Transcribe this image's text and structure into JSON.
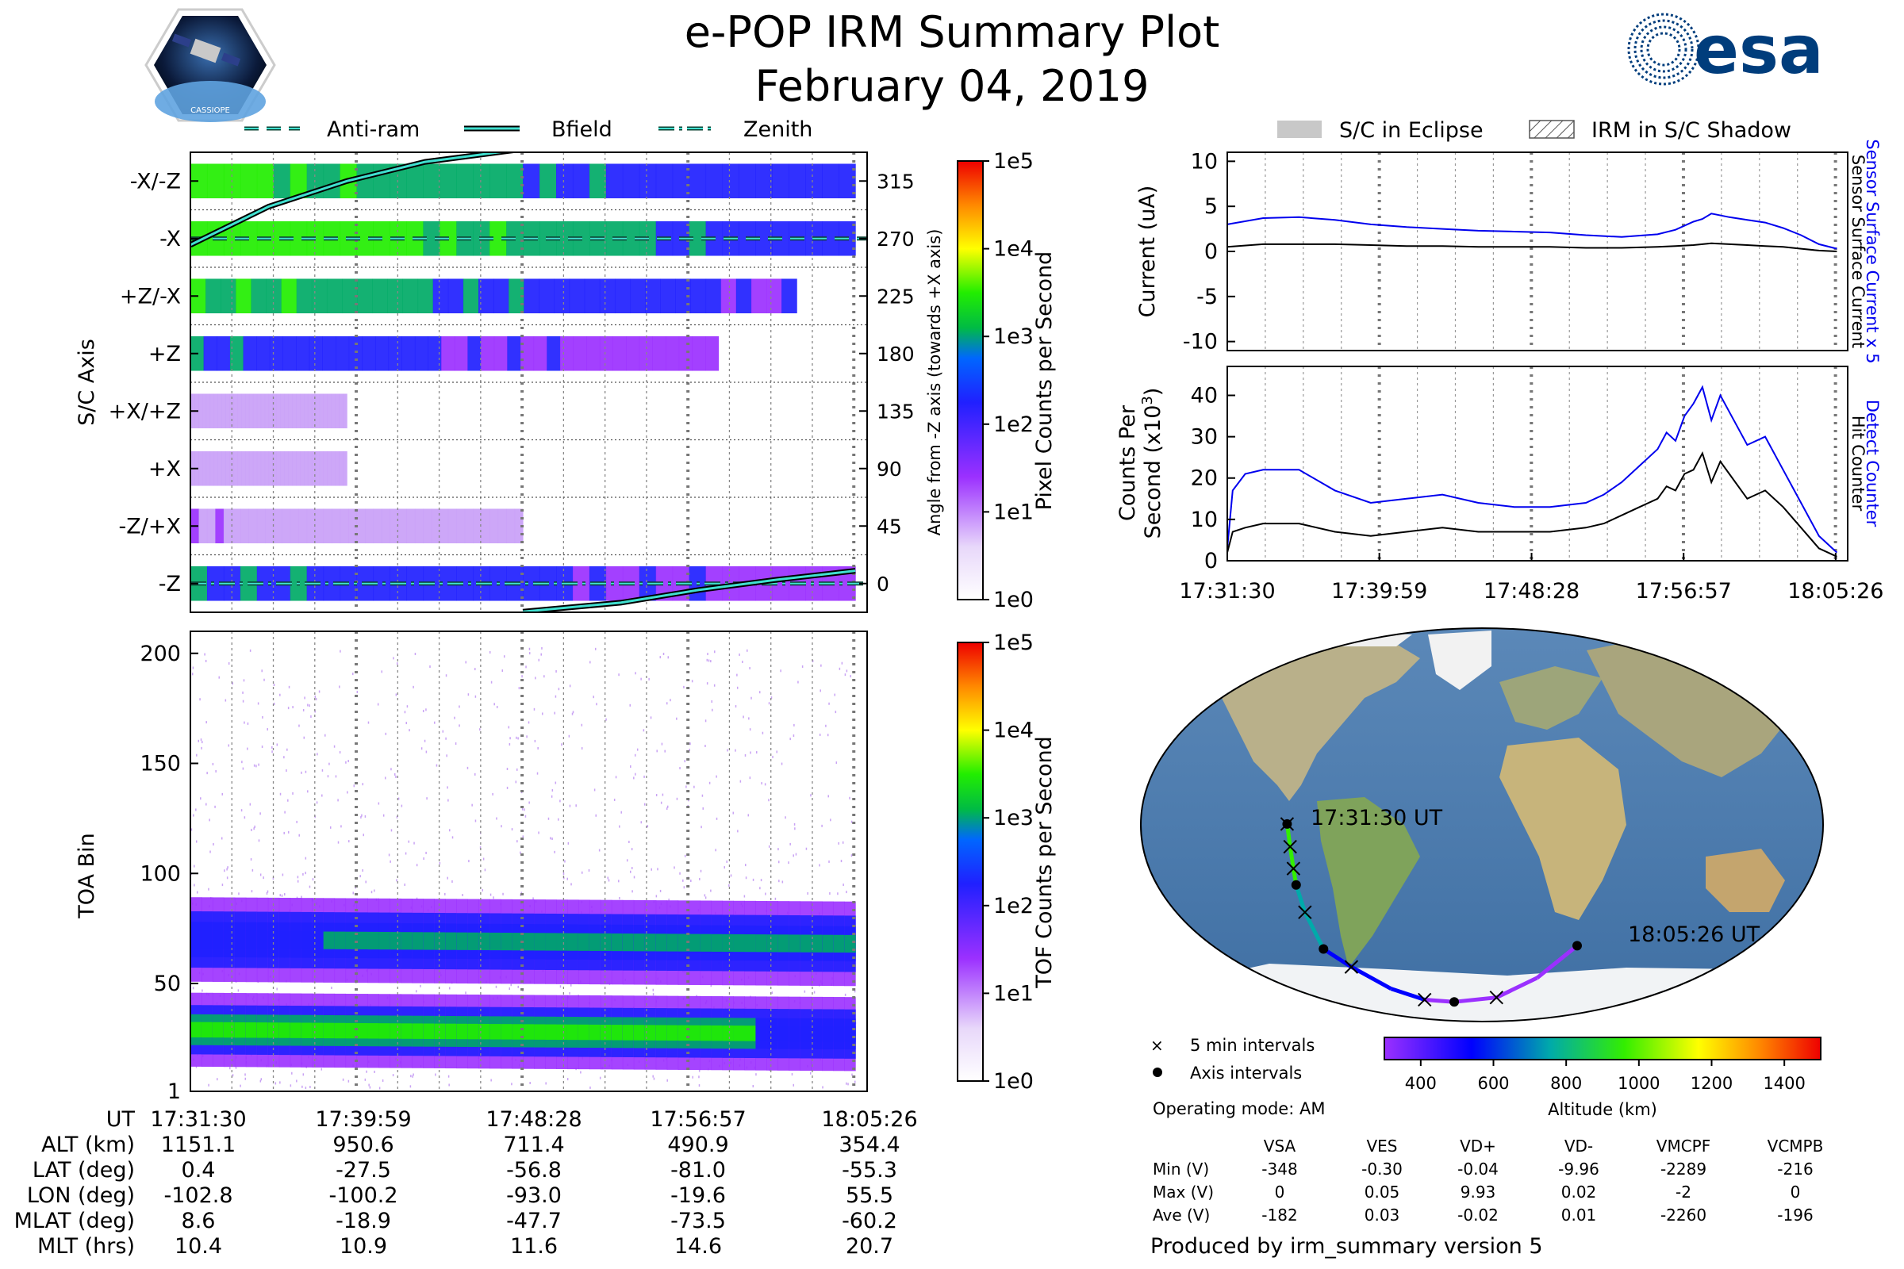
{
  "title": "e-POP IRM Summary Plot",
  "subtitle": "February 04, 2019",
  "logo_left_text": "CASSIOPE",
  "logo_right_text": "esa",
  "legend_top_left": [
    {
      "label": "Anti-ram",
      "style": "dashed"
    },
    {
      "label": "Bfield",
      "style": "solid"
    },
    {
      "label": "Zenith",
      "style": "dashdot"
    }
  ],
  "legend_top_right": [
    {
      "label": "S/C in Eclipse",
      "style": "gray-box"
    },
    {
      "label": "IRM in S/C Shadow",
      "style": "hatched-box"
    }
  ],
  "colors": {
    "anti_ram_line": "#0a3d2e",
    "bfield_outline": "#40e0d0",
    "blue_series": "#0000ee",
    "black_series": "#000000",
    "eclipse_gray": "#c8c8c8"
  },
  "chart_data": [
    {
      "id": "sc_axis",
      "type": "heatmap",
      "ylabel": "S/C Axis",
      "y_tick_labels": [
        "-X/-Z",
        "-X",
        "+Z/-X",
        "+Z",
        "+X/+Z",
        "+X",
        "-Z/+X",
        "-Z"
      ],
      "right_ylabel": "Angle from -Z axis (towards +X axis)",
      "right_ticks": [
        315,
        270,
        225,
        180,
        135,
        90,
        45,
        0
      ],
      "ylim": [
        -22.5,
        337.5
      ],
      "colorbar": {
        "label": "Pixel Counts per Second",
        "scale": "log",
        "ticks": [
          "1e0",
          "1e1",
          "1e2",
          "1e3",
          "1e4",
          "1e5"
        ]
      },
      "bands": [
        {
          "axis": "-X/-Z",
          "intensity": 2.4,
          "extent_minutes": 34
        },
        {
          "axis": "-X",
          "intensity": 2.6,
          "extent_minutes": 34
        },
        {
          "axis": "+Z/-X",
          "intensity": 2.3,
          "extent_minutes": 31
        },
        {
          "axis": "+Z",
          "intensity": 1.9,
          "extent_minutes": 27
        },
        {
          "axis": "+X/+Z",
          "intensity": 0.9,
          "extent_minutes": 8
        },
        {
          "axis": "+X",
          "intensity": 0.9,
          "extent_minutes": 8
        },
        {
          "axis": "-Z/+X",
          "intensity": 1.0,
          "extent_minutes": 17
        },
        {
          "axis": "-Z",
          "intensity": 2.0,
          "extent_minutes": 34
        }
      ],
      "anti_ram_angle": 270,
      "zenith_angle": 0,
      "bfield_curve": {
        "minutes": [
          0,
          4,
          8,
          12,
          17
        ],
        "angles": [
          265,
          295,
          315,
          330,
          340
        ]
      },
      "bfield_curve_2": {
        "minutes": [
          17,
          22,
          26,
          30,
          34
        ],
        "angles": [
          -22,
          -15,
          -5,
          3,
          10
        ]
      }
    },
    {
      "id": "toa",
      "type": "heatmap",
      "ylabel": "TOA Bin",
      "y_ticks": [
        1,
        50,
        100,
        150,
        200
      ],
      "ylim": [
        1,
        210
      ],
      "colorbar": {
        "label": "TOF Counts per Second",
        "scale": "log",
        "ticks": [
          "1e0",
          "1e1",
          "1e2",
          "1e3",
          "1e4",
          "1e5"
        ]
      },
      "bands": [
        {
          "center_start": 29,
          "center_end": 27,
          "width": 14,
          "intensity": 2.4
        },
        {
          "center_start": 70,
          "center_end": 68,
          "width": 16,
          "intensity": 2.1
        }
      ]
    },
    {
      "id": "current",
      "type": "line",
      "ylabel": "Current (uA)",
      "ylim": [
        -11,
        11
      ],
      "y_ticks": [
        10,
        5,
        0,
        -5,
        -10
      ],
      "x_minutes": [
        0,
        2,
        4,
        6,
        8,
        10,
        12,
        14,
        16,
        18,
        20,
        22,
        24,
        25,
        26,
        26.5,
        27,
        28,
        29,
        30,
        31,
        32,
        33,
        34
      ],
      "series": [
        {
          "name": "Sensor Surface Current x 5",
          "color": "blue",
          "values": [
            3.0,
            3.7,
            3.8,
            3.5,
            3.0,
            2.7,
            2.5,
            2.3,
            2.2,
            2.1,
            1.8,
            1.6,
            1.9,
            2.4,
            3.3,
            3.6,
            4.2,
            3.8,
            3.5,
            3.2,
            2.6,
            1.8,
            0.8,
            0.3
          ]
        },
        {
          "name": "Sensor Surface Current",
          "color": "black",
          "values": [
            0.5,
            0.8,
            0.8,
            0.8,
            0.7,
            0.6,
            0.6,
            0.5,
            0.5,
            0.5,
            0.4,
            0.4,
            0.5,
            0.6,
            0.7,
            0.8,
            0.9,
            0.8,
            0.7,
            0.6,
            0.5,
            0.3,
            0.1,
            0.0
          ]
        }
      ]
    },
    {
      "id": "counter",
      "type": "line",
      "ylabel": "Counts Per Second (x10³)",
      "ylim": [
        0,
        47
      ],
      "y_ticks": [
        0,
        10,
        20,
        30,
        40
      ],
      "x_minutes": [
        0,
        0.3,
        1,
        2,
        4,
        6,
        8,
        10,
        12,
        14,
        16,
        18,
        20,
        21,
        22,
        23,
        24,
        24.5,
        25,
        25.5,
        26,
        26.5,
        27,
        27.5,
        28,
        29,
        30,
        31,
        32,
        33,
        34
      ],
      "series": [
        {
          "name": "Detect Counter",
          "color": "blue",
          "values": [
            3,
            17,
            21,
            22,
            22,
            17,
            14,
            15,
            16,
            14,
            13,
            13,
            14,
            16,
            19,
            23,
            27,
            31,
            29,
            35,
            38,
            42,
            34,
            40,
            36,
            28,
            30,
            22,
            14,
            6,
            2
          ]
        },
        {
          "name": "Hit Counter",
          "color": "black",
          "values": [
            2,
            7,
            8,
            9,
            9,
            7,
            6,
            7,
            8,
            7,
            7,
            7,
            8,
            9,
            11,
            13,
            15,
            18,
            17,
            21,
            22,
            26,
            19,
            24,
            21,
            15,
            17,
            13,
            8,
            3,
            1
          ]
        }
      ]
    }
  ],
  "x_axis": {
    "tick_labels": [
      "17:31:30",
      "17:39:59",
      "17:48:28",
      "17:56:57",
      "18:05:26"
    ],
    "minutes": [
      0,
      8.48,
      16.97,
      25.45,
      33.93
    ]
  },
  "right_labels": {
    "current_blue": "Sensor Surface Current x 5",
    "current_black": "Sensor Surface Current",
    "counter_blue": "Detect Counter",
    "counter_black": "Hit Counter"
  },
  "orbit_table": {
    "row_labels": [
      "UT",
      "ALT (km)",
      "LAT (deg)",
      "LON (deg)",
      "MLAT (deg)",
      "MLT (hrs)"
    ],
    "columns": [
      [
        "17:31:30",
        "1151.1",
        "0.4",
        "-102.8",
        "8.6",
        "10.4"
      ],
      [
        "17:39:59",
        "950.6",
        "-27.5",
        "-100.2",
        "-18.9",
        "10.9"
      ],
      [
        "17:48:28",
        "711.4",
        "-56.8",
        "-93.0",
        "-47.7",
        "11.6"
      ],
      [
        "17:56:57",
        "490.9",
        "-81.0",
        "-19.6",
        "-73.5",
        "14.6"
      ],
      [
        "18:05:26",
        "354.4",
        "-55.3",
        "55.5",
        "-60.2",
        "20.7"
      ]
    ]
  },
  "map": {
    "start_label": "17:31:30 UT",
    "end_label": "18:05:26 UT",
    "legend_5min": "5 min intervals",
    "legend_axis": "Axis intervals",
    "altitude_colorbar": {
      "label": "Altitude (km)",
      "ticks": [
        "400",
        "600",
        "800",
        "1000",
        "1200",
        "1400"
      ],
      "range": [
        300,
        1500
      ]
    },
    "track_lonlat": [
      [
        -102.8,
        0.4
      ],
      [
        -101.5,
        -10
      ],
      [
        -100.6,
        -20
      ],
      [
        -100.2,
        -27.5
      ],
      [
        -98,
        -40
      ],
      [
        -93,
        -56.8
      ],
      [
        -80,
        -65
      ],
      [
        -60,
        -75
      ],
      [
        -40,
        -80
      ],
      [
        -19.6,
        -81
      ],
      [
        10,
        -79
      ],
      [
        35,
        -70
      ],
      [
        55.5,
        -55.3
      ]
    ]
  },
  "operating_mode": "Operating mode: AM",
  "voltage_table": {
    "headers": [
      "VSA",
      "VES",
      "VD+",
      "VD-",
      "VMCPF",
      "VCMPB"
    ],
    "rows": [
      {
        "label": "Min (V)",
        "values": [
          "-348",
          "-0.30",
          "-0.04",
          "-9.96",
          "-2289",
          "-216"
        ]
      },
      {
        "label": "Max (V)",
        "values": [
          "0",
          "0.05",
          "9.93",
          "0.02",
          "-2",
          "0"
        ]
      },
      {
        "label": "Ave (V)",
        "values": [
          "-182",
          "0.03",
          "-0.02",
          "0.01",
          "-2260",
          "-196"
        ]
      }
    ]
  },
  "footer": "Produced by irm_summary version 5"
}
